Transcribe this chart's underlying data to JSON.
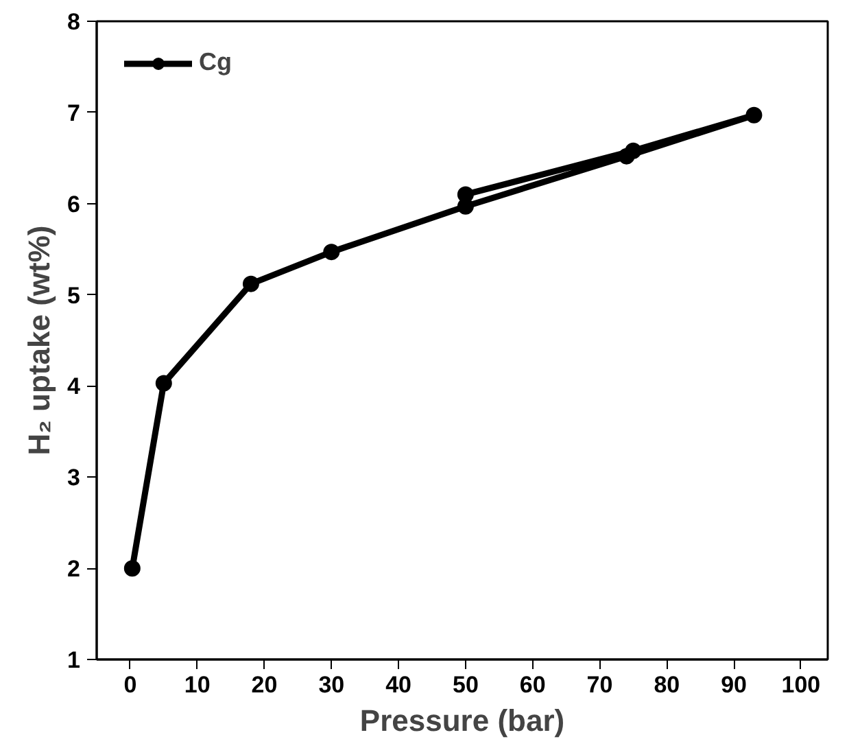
{
  "chart_data": {
    "type": "line",
    "xlabel": "Pressure (bar)",
    "ylabel": "H₂ uptake (wt%)",
    "x": [
      0.3,
      5,
      18,
      30,
      50,
      74,
      93,
      75,
      50
    ],
    "series": [
      {
        "name": "Cg",
        "color": "#000000",
        "values": [
          2.0,
          4.03,
          5.12,
          5.47,
          5.97,
          6.52,
          6.97,
          6.58,
          6.1
        ]
      }
    ],
    "xlim": [
      -5,
      104
    ],
    "xticks": [
      0,
      10,
      20,
      30,
      40,
      50,
      60,
      70,
      80,
      90,
      100
    ],
    "ylim": [
      1,
      8
    ],
    "yticks": [
      1,
      2,
      3,
      4,
      5,
      6,
      7,
      8
    ],
    "grid": false,
    "legend": "top left",
    "marker": "circle",
    "line_style": "solid"
  }
}
